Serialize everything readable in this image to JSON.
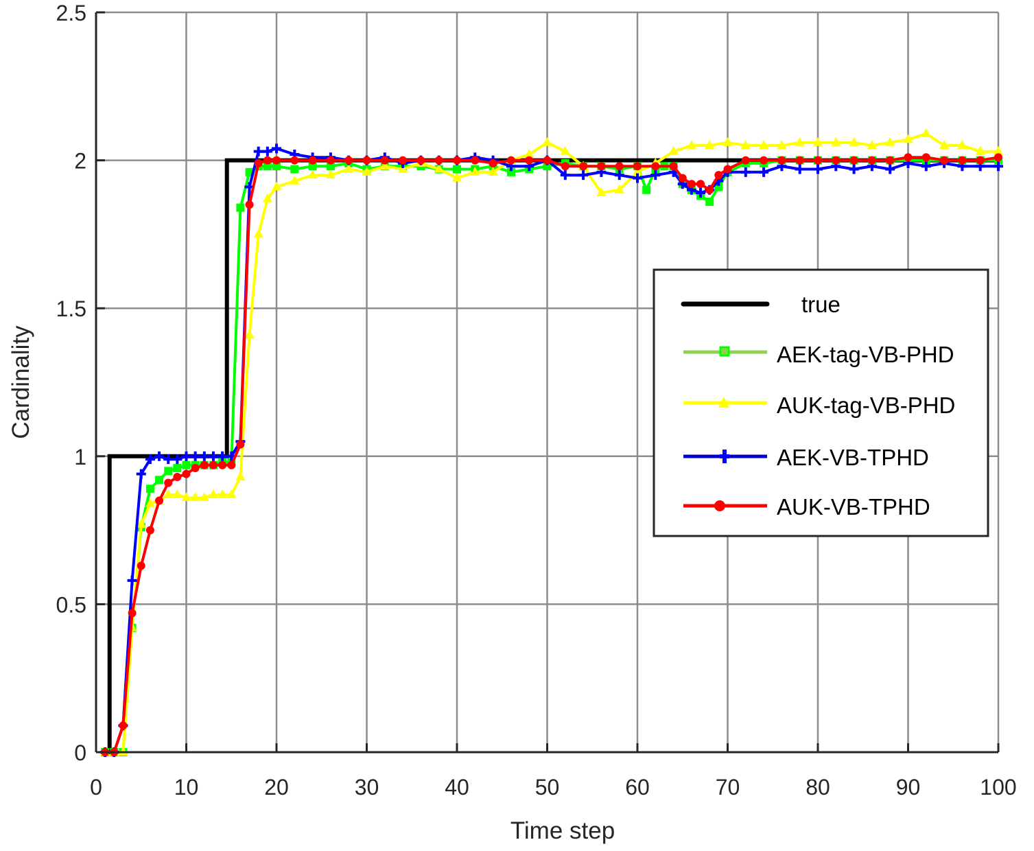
{
  "chart_data": {
    "type": "line",
    "title": "",
    "xlabel": "Time step",
    "ylabel": "Cardinality",
    "xlim": [
      0,
      100
    ],
    "ylim": [
      0,
      2.5
    ],
    "xticks": [
      0,
      10,
      20,
      30,
      40,
      50,
      60,
      70,
      80,
      90,
      100
    ],
    "yticks": [
      0,
      0.5,
      1,
      1.5,
      2,
      2.5
    ],
    "ytick_labels": [
      "0",
      "0.5",
      "1",
      "1.5",
      "2",
      "2.5"
    ],
    "grid": true,
    "legend_position": "center-right",
    "series": [
      {
        "name": "true",
        "color": "#000000",
        "marker": "none",
        "x": [
          1,
          1.5,
          1.5,
          14.5,
          14.5,
          100
        ],
        "y": [
          0,
          0,
          1,
          1,
          2,
          2
        ]
      },
      {
        "name": "AEK-tag-VB-PHD",
        "color": "#00ff00",
        "legend_line_color": "#92d050",
        "marker": "square",
        "x": [
          1,
          2,
          3,
          4,
          5,
          6,
          7,
          8,
          9,
          10,
          11,
          12,
          13,
          14,
          15,
          16,
          17,
          18,
          19,
          20,
          22,
          24,
          26,
          28,
          30,
          32,
          34,
          36,
          38,
          40,
          42,
          44,
          46,
          48,
          50,
          52,
          54,
          56,
          58,
          60,
          61,
          62,
          63,
          64,
          65,
          66,
          67,
          68,
          69,
          70,
          72,
          74,
          76,
          78,
          80,
          82,
          84,
          86,
          88,
          90,
          92,
          94,
          96,
          98,
          100
        ],
        "y": [
          0,
          0,
          0,
          0.42,
          0.76,
          0.89,
          0.92,
          0.95,
          0.96,
          0.97,
          0.97,
          0.97,
          0.97,
          0.98,
          0.98,
          1.84,
          1.96,
          1.98,
          1.98,
          1.98,
          1.97,
          1.98,
          1.98,
          1.99,
          1.97,
          1.98,
          1.98,
          1.98,
          1.97,
          1.97,
          1.97,
          1.98,
          1.96,
          1.97,
          1.98,
          1.99,
          1.98,
          1.98,
          1.97,
          1.98,
          1.9,
          1.97,
          1.98,
          1.98,
          1.92,
          1.9,
          1.88,
          1.86,
          1.91,
          1.96,
          1.99,
          1.99,
          2.0,
          2.0,
          2.0,
          2.0,
          2.0,
          2.0,
          2.0,
          2.0,
          2.0,
          2.0,
          2.0,
          2.0,
          2.0
        ]
      },
      {
        "name": "AUK-tag-VB-PHD",
        "color": "#ffff00",
        "legend_line_color": "#ffff00",
        "marker": "triangle",
        "x": [
          1,
          2,
          3,
          4,
          5,
          6,
          7,
          8,
          9,
          10,
          11,
          12,
          13,
          14,
          15,
          16,
          17,
          18,
          19,
          20,
          22,
          24,
          26,
          28,
          30,
          32,
          34,
          36,
          38,
          40,
          42,
          44,
          46,
          48,
          50,
          52,
          54,
          56,
          58,
          60,
          62,
          64,
          66,
          68,
          70,
          72,
          74,
          76,
          78,
          80,
          82,
          84,
          86,
          88,
          90,
          92,
          94,
          96,
          98,
          100
        ],
        "y": [
          0,
          0,
          0,
          0.42,
          0.77,
          0.84,
          0.85,
          0.87,
          0.87,
          0.86,
          0.86,
          0.86,
          0.87,
          0.87,
          0.87,
          0.93,
          1.41,
          1.75,
          1.87,
          1.91,
          1.93,
          1.95,
          1.95,
          1.97,
          1.96,
          1.98,
          1.97,
          1.99,
          1.97,
          1.94,
          1.96,
          1.96,
          2.0,
          2.02,
          2.06,
          2.03,
          1.98,
          1.89,
          1.9,
          1.96,
          1.99,
          2.03,
          2.05,
          2.05,
          2.06,
          2.05,
          2.05,
          2.05,
          2.06,
          2.06,
          2.06,
          2.06,
          2.05,
          2.06,
          2.07,
          2.09,
          2.05,
          2.05,
          2.03,
          2.03
        ]
      },
      {
        "name": "AEK-VB-TPHD",
        "color": "#0000ff",
        "legend_line_color": "#0000c8",
        "marker": "plus",
        "x": [
          1,
          2,
          3,
          4,
          5,
          6,
          7,
          8,
          9,
          10,
          11,
          12,
          13,
          14,
          15,
          16,
          17,
          18,
          19,
          20,
          22,
          24,
          26,
          28,
          30,
          32,
          34,
          36,
          38,
          40,
          42,
          44,
          46,
          48,
          50,
          52,
          54,
          56,
          58,
          60,
          62,
          64,
          65,
          66,
          67,
          68,
          69,
          70,
          72,
          74,
          76,
          78,
          80,
          82,
          84,
          86,
          88,
          90,
          92,
          94,
          96,
          98,
          100
        ],
        "y": [
          0,
          0,
          0.09,
          0.58,
          0.94,
          0.99,
          1.0,
          0.99,
          0.99,
          1.0,
          1.0,
          1.0,
          1.0,
          1.0,
          1.0,
          1.05,
          1.91,
          2.03,
          2.03,
          2.04,
          2.02,
          2.01,
          2.01,
          2.0,
          2.0,
          2.01,
          1.99,
          2.0,
          2.0,
          2.0,
          2.01,
          2.0,
          1.98,
          1.98,
          2.0,
          1.95,
          1.95,
          1.96,
          1.95,
          1.94,
          1.95,
          1.96,
          1.92,
          1.9,
          1.89,
          1.9,
          1.93,
          1.96,
          1.96,
          1.96,
          1.98,
          1.97,
          1.97,
          1.98,
          1.97,
          1.98,
          1.97,
          1.99,
          1.98,
          1.99,
          1.98,
          1.98,
          1.98
        ]
      },
      {
        "name": "AUK-VB-TPHD",
        "color": "#ff0000",
        "legend_line_color": "#ff0000",
        "marker": "circle",
        "x": [
          1,
          2,
          3,
          4,
          5,
          6,
          7,
          8,
          9,
          10,
          11,
          12,
          13,
          14,
          15,
          16,
          17,
          18,
          19,
          20,
          22,
          24,
          26,
          28,
          30,
          32,
          34,
          36,
          38,
          40,
          42,
          44,
          46,
          48,
          50,
          52,
          54,
          56,
          58,
          60,
          62,
          64,
          65,
          66,
          67,
          68,
          69,
          70,
          72,
          74,
          76,
          78,
          80,
          82,
          84,
          86,
          88,
          90,
          92,
          94,
          96,
          98,
          100
        ],
        "y": [
          0,
          0,
          0.09,
          0.47,
          0.63,
          0.75,
          0.85,
          0.91,
          0.93,
          0.94,
          0.96,
          0.97,
          0.97,
          0.97,
          0.97,
          1.04,
          1.85,
          1.99,
          2.0,
          2.0,
          2.0,
          2.0,
          2.0,
          2.0,
          2.0,
          2.0,
          2.0,
          2.0,
          2.0,
          2.0,
          2.0,
          1.99,
          2.0,
          2.0,
          2.0,
          1.98,
          1.98,
          1.98,
          1.98,
          1.98,
          1.98,
          1.98,
          1.94,
          1.92,
          1.92,
          1.9,
          1.95,
          1.97,
          2.0,
          2.0,
          2.0,
          2.0,
          2.0,
          2.0,
          2.0,
          2.0,
          2.0,
          2.01,
          2.01,
          2.0,
          2.0,
          2.0,
          2.01
        ]
      }
    ]
  },
  "legend": {
    "items": [
      {
        "label": "true"
      },
      {
        "label": "AEK-tag-VB-PHD"
      },
      {
        "label": "AUK-tag-VB-PHD"
      },
      {
        "label": "AEK-VB-TPHD"
      },
      {
        "label": "AUK-VB-TPHD"
      }
    ]
  },
  "axes": {
    "xlabel": "Time step",
    "ylabel": "Cardinality"
  }
}
